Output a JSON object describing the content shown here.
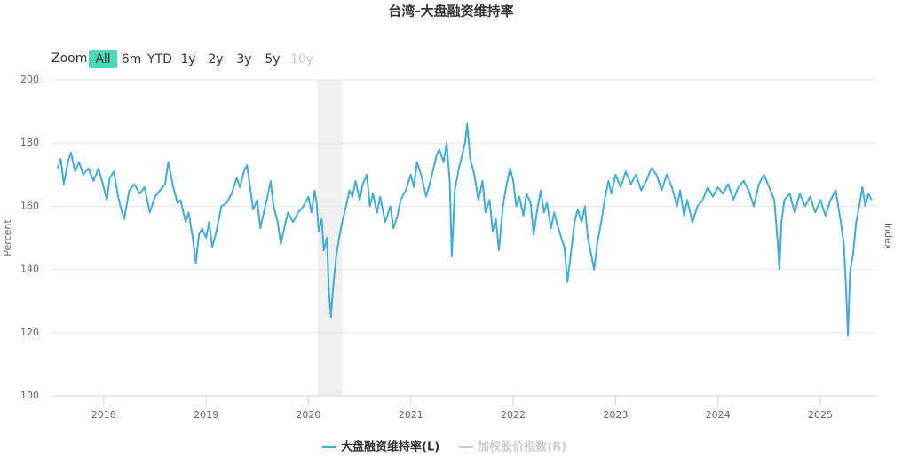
{
  "chart_data": {
    "type": "line",
    "title": "台湾-大盘融资维持率",
    "range_selector": {
      "label": "Zoom",
      "buttons": [
        "All",
        "6m",
        "YTD",
        "1y",
        "2y",
        "3y",
        "5y",
        "10y"
      ],
      "selected_index": 0,
      "disabled_index": 7
    },
    "y_label": "Percent",
    "y2_label": "Index",
    "xlim": [
      2017.49,
      2025.555
    ],
    "xticks": [
      2018,
      2019,
      2020,
      2021,
      2022,
      2023,
      2024,
      2025
    ],
    "ylim": [
      100,
      200
    ],
    "yticks": [
      100,
      120,
      140,
      160,
      180,
      200
    ],
    "grid": true,
    "highlight": [
      2020.09,
      2020.33
    ],
    "x": [
      2017.55,
      2017.58,
      2017.61,
      2017.65,
      2017.68,
      2017.72,
      2017.76,
      2017.8,
      2017.85,
      2017.9,
      2017.95,
      2018.0,
      2018.03,
      2018.06,
      2018.1,
      2018.14,
      2018.18,
      2018.2,
      2018.25,
      2018.3,
      2018.35,
      2018.4,
      2018.45,
      2018.5,
      2018.55,
      2018.6,
      2018.63,
      2018.68,
      2018.72,
      2018.75,
      2018.8,
      2018.83,
      2018.87,
      2018.9,
      2018.93,
      2018.96,
      2019.0,
      2019.03,
      2019.06,
      2019.1,
      2019.15,
      2019.2,
      2019.25,
      2019.3,
      2019.33,
      2019.37,
      2019.4,
      2019.43,
      2019.46,
      2019.5,
      2019.53,
      2019.57,
      2019.6,
      2019.63,
      2019.66,
      2019.7,
      2019.73,
      2019.77,
      2019.8,
      2019.85,
      2019.9,
      2019.95,
      2020.0,
      2020.03,
      2020.06,
      2020.08,
      2020.1,
      2020.13,
      2020.15,
      2020.18,
      2020.2,
      2020.22,
      2020.24,
      2020.27,
      2020.3,
      2020.33,
      2020.36,
      2020.4,
      2020.43,
      2020.46,
      2020.5,
      2020.53,
      2020.57,
      2020.6,
      2020.63,
      2020.67,
      2020.7,
      2020.75,
      2020.8,
      2020.83,
      2020.87,
      2020.9,
      2020.95,
      2021.0,
      2021.03,
      2021.06,
      2021.1,
      2021.15,
      2021.2,
      2021.25,
      2021.28,
      2021.32,
      2021.35,
      2021.38,
      2021.4,
      2021.43,
      2021.47,
      2021.5,
      2021.53,
      2021.55,
      2021.58,
      2021.62,
      2021.66,
      2021.7,
      2021.73,
      2021.77,
      2021.8,
      2021.83,
      2021.86,
      2021.9,
      2021.93,
      2021.97,
      2022.0,
      2022.03,
      2022.06,
      2022.1,
      2022.13,
      2022.17,
      2022.2,
      2022.23,
      2022.27,
      2022.3,
      2022.33,
      2022.37,
      2022.4,
      2022.45,
      2022.5,
      2022.53,
      2022.56,
      2022.6,
      2022.63,
      2022.67,
      2022.7,
      2022.73,
      2022.76,
      2022.79,
      2022.82,
      2022.86,
      2022.9,
      2022.93,
      2022.96,
      2023.0,
      2023.05,
      2023.1,
      2023.15,
      2023.2,
      2023.25,
      2023.3,
      2023.35,
      2023.4,
      2023.45,
      2023.5,
      2023.55,
      2023.6,
      2023.63,
      2023.67,
      2023.7,
      2023.75,
      2023.8,
      2023.85,
      2023.9,
      2023.95,
      2024.0,
      2024.05,
      2024.1,
      2024.15,
      2024.2,
      2024.25,
      2024.3,
      2024.35,
      2024.4,
      2024.45,
      2024.5,
      2024.55,
      2024.58,
      2024.6,
      2024.62,
      2024.65,
      2024.7,
      2024.75,
      2024.8,
      2024.85,
      2024.9,
      2024.95,
      2025.0,
      2025.05,
      2025.1,
      2025.15,
      2025.2,
      2025.23,
      2025.25,
      2025.27,
      2025.29,
      2025.32,
      2025.35,
      2025.38,
      2025.41,
      2025.44,
      2025.47,
      2025.5
    ],
    "series": [
      {
        "name": "大盘融资维持率(L)",
        "color": "#41acd8",
        "values": [
          172,
          175,
          167,
          174,
          177,
          171,
          174,
          170,
          172,
          168,
          172,
          166,
          162,
          169,
          171,
          163,
          158,
          156,
          165,
          167,
          164,
          166,
          158,
          163,
          165,
          167,
          174,
          166,
          161,
          162,
          155,
          158,
          150,
          142,
          151,
          153,
          150,
          155,
          147,
          152,
          160,
          161,
          164,
          169,
          166,
          171,
          173,
          166,
          159,
          162,
          153,
          159,
          163,
          168,
          160,
          155,
          148,
          154,
          158,
          155,
          158,
          160,
          163,
          158,
          165,
          161,
          152,
          156,
          146,
          150,
          133,
          125,
          134,
          144,
          150,
          155,
          159,
          165,
          163,
          168,
          162,
          167,
          170,
          160,
          164,
          158,
          163,
          155,
          160,
          153,
          157,
          162,
          165,
          170,
          166,
          174,
          170,
          163,
          169,
          176,
          178,
          174,
          180,
          168,
          144,
          165,
          172,
          176,
          180,
          186,
          175,
          170,
          162,
          168,
          158,
          162,
          152,
          156,
          146,
          160,
          166,
          172,
          168,
          160,
          163,
          157,
          164,
          161,
          151,
          158,
          165,
          158,
          161,
          153,
          158,
          152,
          147,
          136,
          144,
          155,
          159,
          155,
          160,
          150,
          145,
          140,
          148,
          155,
          163,
          168,
          164,
          170,
          166,
          171,
          167,
          170,
          165,
          168,
          172,
          170,
          165,
          170,
          166,
          160,
          165,
          157,
          162,
          155,
          160,
          162,
          166,
          163,
          166,
          164,
          167,
          162,
          166,
          168,
          165,
          160,
          167,
          170,
          166,
          162,
          150,
          140,
          155,
          162,
          164,
          158,
          164,
          160,
          163,
          158,
          162,
          157,
          162,
          165,
          155,
          148,
          135,
          119,
          139,
          145,
          155,
          160,
          166,
          160,
          164,
          162
        ]
      }
    ],
    "hidden_series": [
      {
        "name": "加权股价指数(R)"
      }
    ]
  }
}
